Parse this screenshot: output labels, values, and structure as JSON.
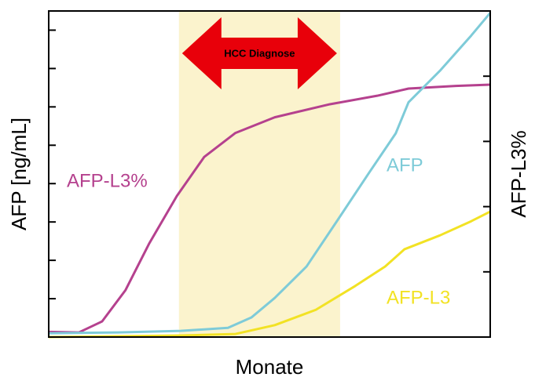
{
  "chart_data": {
    "type": "line",
    "x_label": "Monate",
    "y_label": "AFP [ng/mL]",
    "y2_label": "AFP-L3%",
    "annotation": "HCC Diagnose",
    "highlight": [
      29.5,
      66
    ],
    "highlight_color": "#fbf3cd",
    "arrow_color": "#e8000a",
    "xlim": [
      0,
      100
    ],
    "ylim": [
      0,
      8.5
    ],
    "yticks": [
      1,
      2,
      3,
      4,
      5,
      6,
      7,
      8
    ],
    "y2lim": [
      0,
      5
    ],
    "y2ticks": [
      1,
      2,
      3,
      4
    ],
    "series": [
      {
        "name": "AFP-L3%",
        "color": "#b5418e",
        "axis": "y2",
        "x": [
          0,
          6.8,
          12.1,
          17.4,
          22.8,
          29,
          35.2,
          42.3,
          51.2,
          63.7,
          74.4,
          81.5,
          92.2,
          100
        ],
        "values": [
          0.08,
          0.07,
          0.24,
          0.72,
          1.44,
          2.16,
          2.76,
          3.13,
          3.37,
          3.57,
          3.7,
          3.81,
          3.85,
          3.87
        ]
      },
      {
        "name": "AFP",
        "color": "#7ecbd8",
        "x": [
          0,
          15.7,
          29.9,
          40.6,
          45.9,
          51.2,
          58.4,
          65.5,
          72.6,
          78.6,
          81.5,
          88.6,
          95.7,
          100
        ],
        "values": [
          0.1,
          0.12,
          0.16,
          0.24,
          0.51,
          1.02,
          1.84,
          3.06,
          4.29,
          5.31,
          6.12,
          6.94,
          7.86,
          8.45
        ]
      },
      {
        "name": "AFP-L3",
        "color": "#f2e224",
        "x": [
          0,
          29.9,
          42.3,
          51.2,
          60.5,
          69.4,
          76.2,
          80.6,
          88.6,
          95.7,
          100
        ],
        "values": [
          0,
          0.04,
          0.08,
          0.31,
          0.71,
          1.33,
          1.84,
          2.29,
          2.65,
          3.02,
          3.27
        ]
      }
    ]
  }
}
